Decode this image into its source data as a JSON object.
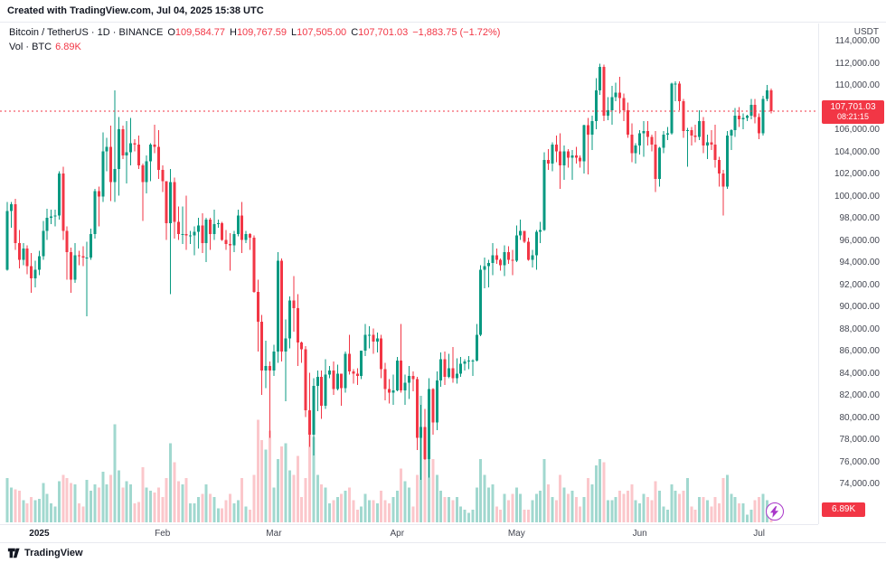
{
  "attribution": "Created with TradingView.com, Jul 04, 2025 15:38 UTC",
  "legend": {
    "title": "Bitcoin / TetherUS · 1D · BINANCE",
    "ohlc": [
      {
        "label": "O",
        "value": "109,584.77"
      },
      {
        "label": "H",
        "value": "109,767.59"
      },
      {
        "label": "L",
        "value": "107,505.00"
      },
      {
        "label": "C",
        "value": "107,701.03"
      }
    ],
    "change": "−1,883.75 (−1.72%)",
    "vol_label": "Vol · BTC",
    "vol_value": "6.89K"
  },
  "axis": {
    "currency": "USDT",
    "price_badge": {
      "price": "107,701.03",
      "countdown": "08:21:15"
    },
    "volume_badge": "6.89K"
  },
  "footer": {
    "brand": "TradingView"
  },
  "colors": {
    "up": "#089981",
    "down": "#f23645",
    "vol_up": "rgba(8,153,129,0.38)",
    "vol_down": "rgba(242,54,69,0.28)",
    "badge": "#f23645",
    "boost": "#a936c9",
    "text": "#131722",
    "muted": "#434651"
  },
  "chart_data": {
    "type": "candlestick+volume",
    "title": "Bitcoin / TetherUS · 1D · BINANCE",
    "interval": "1D",
    "start_date": "2024-12-24",
    "last_price": 107701.03,
    "last_volume_k": 6.89,
    "price_axis": {
      "min": 74000,
      "max": 114000,
      "tick_step": 2000,
      "currency": "USDT"
    },
    "y_ticks": [
      114000,
      112000,
      110000,
      108000,
      106000,
      104000,
      102000,
      100000,
      98000,
      96000,
      94000,
      92000,
      90000,
      88000,
      86000,
      84000,
      82000,
      80000,
      78000,
      76000,
      74000
    ],
    "x_ticks": [
      {
        "index": 8,
        "label": "2025",
        "bold": true
      },
      {
        "index": 39,
        "label": "Feb"
      },
      {
        "index": 67,
        "label": "Mar"
      },
      {
        "index": 98,
        "label": "Apr"
      },
      {
        "index": 128,
        "label": "May"
      },
      {
        "index": 159,
        "label": "Jun"
      },
      {
        "index": 189,
        "label": "Jul"
      }
    ],
    "candles_format": [
      "open",
      "high",
      "low",
      "close",
      "volume_k_btc"
    ],
    "candles": [
      [
        93400,
        99500,
        93300,
        98700,
        28
      ],
      [
        98700,
        99500,
        97200,
        99300,
        22
      ],
      [
        99300,
        99800,
        95200,
        95800,
        21
      ],
      [
        95800,
        97000,
        93500,
        94300,
        20
      ],
      [
        94300,
        95800,
        93800,
        95300,
        14
      ],
      [
        95300,
        95600,
        93000,
        93700,
        12
      ],
      [
        93700,
        94900,
        91300,
        92600,
        16
      ],
      [
        92600,
        94200,
        91800,
        93400,
        14
      ],
      [
        93400,
        95100,
        92900,
        94600,
        15
      ],
      [
        94600,
        97800,
        94300,
        96900,
        25
      ],
      [
        96900,
        98900,
        96100,
        98100,
        18
      ],
      [
        98100,
        98800,
        97500,
        98200,
        12
      ],
      [
        98200,
        98800,
        97300,
        98300,
        10
      ],
      [
        98300,
        102300,
        97900,
        102100,
        26
      ],
      [
        102100,
        102700,
        96100,
        96900,
        30
      ],
      [
        96900,
        97300,
        92500,
        95000,
        28
      ],
      [
        95000,
        95400,
        91300,
        92500,
        25
      ],
      [
        92500,
        95800,
        92200,
        94700,
        24
      ],
      [
        94700,
        95100,
        93800,
        94600,
        12
      ],
      [
        94600,
        95500,
        93700,
        94500,
        10
      ],
      [
        94500,
        95900,
        89200,
        94500,
        27
      ],
      [
        94500,
        97100,
        94300,
        96600,
        20
      ],
      [
        96600,
        100700,
        96200,
        100500,
        24
      ],
      [
        100500,
        100900,
        97300,
        100000,
        22
      ],
      [
        100000,
        105800,
        99500,
        104100,
        32
      ],
      [
        104100,
        105300,
        102300,
        104500,
        24
      ],
      [
        104500,
        106400,
        99600,
        101300,
        30
      ],
      [
        101300,
        109600,
        99500,
        102500,
        62
      ],
      [
        102500,
        107200,
        100100,
        106100,
        33
      ],
      [
        106100,
        106400,
        103400,
        103700,
        22
      ],
      [
        103700,
        106800,
        101200,
        104000,
        26
      ],
      [
        104000,
        107100,
        102800,
        104800,
        24
      ],
      [
        104800,
        105200,
        104100,
        104700,
        12
      ],
      [
        104700,
        105500,
        102500,
        102800,
        13
      ],
      [
        102800,
        103000,
        97800,
        101300,
        35
      ],
      [
        101300,
        103700,
        100300,
        103200,
        22
      ],
      [
        103200,
        104800,
        101400,
        104700,
        20
      ],
      [
        104700,
        106500,
        103900,
        104500,
        19
      ],
      [
        104500,
        106000,
        101600,
        102400,
        22
      ],
      [
        102400,
        102800,
        100400,
        101400,
        16
      ],
      [
        101400,
        101400,
        96100,
        97600,
        28
      ],
      [
        97600,
        102500,
        91200,
        101300,
        50
      ],
      [
        101300,
        101700,
        96200,
        97700,
        38
      ],
      [
        97700,
        99100,
        96100,
        96600,
        26
      ],
      [
        96600,
        99100,
        95700,
        96600,
        24
      ],
      [
        96600,
        100100,
        95200,
        96500,
        28
      ],
      [
        96500,
        96900,
        95700,
        96500,
        12
      ],
      [
        96500,
        97300,
        94700,
        96800,
        12
      ],
      [
        96800,
        98100,
        95300,
        97400,
        16
      ],
      [
        97400,
        98500,
        94900,
        95800,
        18
      ],
      [
        95800,
        98100,
        94100,
        97900,
        24
      ],
      [
        97900,
        98100,
        95200,
        96600,
        18
      ],
      [
        96600,
        98800,
        96100,
        97500,
        16
      ],
      [
        97500,
        97900,
        97200,
        97600,
        9
      ],
      [
        97600,
        97700,
        96000,
        96100,
        9
      ],
      [
        96100,
        97000,
        95200,
        95700,
        14
      ],
      [
        95700,
        96700,
        93300,
        95600,
        18
      ],
      [
        95600,
        96900,
        95000,
        96600,
        12
      ],
      [
        96600,
        98800,
        96400,
        98300,
        14
      ],
      [
        98300,
        99500,
        94900,
        96100,
        28
      ],
      [
        96100,
        96900,
        95800,
        96600,
        10
      ],
      [
        96600,
        96700,
        95200,
        96300,
        8
      ],
      [
        96300,
        96500,
        91300,
        91400,
        30
      ],
      [
        91400,
        92500,
        86000,
        88700,
        65
      ],
      [
        88700,
        89300,
        82100,
        84300,
        52
      ],
      [
        84300,
        87000,
        82700,
        84700,
        46
      ],
      [
        84700,
        85100,
        78200,
        84300,
        58
      ],
      [
        84300,
        86600,
        83800,
        86000,
        22
      ],
      [
        86000,
        95000,
        85000,
        94200,
        40
      ],
      [
        94200,
        94400,
        85100,
        86000,
        48
      ],
      [
        86000,
        88900,
        81500,
        87200,
        50
      ],
      [
        87200,
        91000,
        86300,
        90600,
        33
      ],
      [
        90600,
        92800,
        87800,
        89900,
        30
      ],
      [
        89900,
        91200,
        84700,
        86800,
        42
      ],
      [
        86800,
        86900,
        85000,
        86200,
        16
      ],
      [
        86200,
        86500,
        80100,
        80700,
        28
      ],
      [
        80700,
        84100,
        77400,
        78500,
        56
      ],
      [
        78500,
        83600,
        76600,
        82900,
        54
      ],
      [
        82900,
        84300,
        80600,
        83700,
        30
      ],
      [
        83700,
        84300,
        79900,
        81100,
        24
      ],
      [
        81100,
        85300,
        80800,
        83900,
        22
      ],
      [
        83900,
        84700,
        83600,
        84300,
        12
      ],
      [
        84300,
        85100,
        82100,
        82600,
        14
      ],
      [
        82600,
        84800,
        82500,
        84000,
        16
      ],
      [
        84000,
        84000,
        81100,
        82700,
        18
      ],
      [
        82700,
        86000,
        82300,
        85800,
        20
      ],
      [
        85800,
        87500,
        83900,
        84200,
        22
      ],
      [
        84200,
        84400,
        83100,
        84000,
        14
      ],
      [
        84000,
        84500,
        83000,
        83800,
        8
      ],
      [
        83800,
        86100,
        83500,
        86100,
        10
      ],
      [
        86100,
        88500,
        85600,
        87500,
        18
      ],
      [
        87500,
        88300,
        86300,
        87500,
        14
      ],
      [
        87500,
        88100,
        85800,
        86900,
        14
      ],
      [
        86900,
        87700,
        85900,
        87200,
        12
      ],
      [
        87200,
        87500,
        83600,
        84400,
        20
      ],
      [
        84400,
        85000,
        81600,
        82600,
        14
      ],
      [
        82600,
        83500,
        81300,
        82300,
        12
      ],
      [
        82300,
        83900,
        81200,
        82500,
        16
      ],
      [
        82500,
        85500,
        82400,
        85200,
        20
      ],
      [
        85200,
        88500,
        82300,
        82500,
        34
      ],
      [
        82500,
        83900,
        81200,
        83200,
        26
      ],
      [
        83200,
        84700,
        81700,
        83800,
        22
      ],
      [
        83800,
        84200,
        82400,
        83500,
        10
      ],
      [
        83500,
        83700,
        77100,
        78200,
        30
      ],
      [
        78200,
        81200,
        74400,
        79200,
        80
      ],
      [
        79200,
        80800,
        76200,
        76300,
        44
      ],
      [
        76300,
        83600,
        74600,
        82600,
        76
      ],
      [
        82600,
        82700,
        78500,
        79600,
        40
      ],
      [
        79600,
        84200,
        78900,
        83400,
        30
      ],
      [
        83400,
        85900,
        82800,
        85300,
        20
      ],
      [
        85300,
        86000,
        83000,
        83700,
        16
      ],
      [
        83700,
        85800,
        83600,
        84500,
        16
      ],
      [
        84500,
        86400,
        83200,
        83600,
        14
      ],
      [
        83600,
        85400,
        83100,
        84000,
        16
      ],
      [
        84000,
        85500,
        83700,
        84900,
        10
      ],
      [
        84900,
        85300,
        84300,
        85100,
        8
      ],
      [
        85100,
        85600,
        84400,
        85200,
        6
      ],
      [
        85200,
        85300,
        83800,
        85200,
        8
      ],
      [
        85200,
        88500,
        85100,
        87500,
        22
      ],
      [
        87500,
        93800,
        87400,
        93400,
        40
      ],
      [
        93400,
        94500,
        91700,
        93700,
        30
      ],
      [
        93700,
        94300,
        91800,
        94000,
        22
      ],
      [
        94000,
        95800,
        92900,
        94700,
        24
      ],
      [
        94700,
        95300,
        93900,
        94300,
        10
      ],
      [
        94300,
        94400,
        93300,
        93800,
        8
      ],
      [
        93800,
        95600,
        92800,
        95000,
        18
      ],
      [
        95000,
        95500,
        93900,
        94300,
        14
      ],
      [
        94300,
        95200,
        92900,
        94200,
        18
      ],
      [
        94200,
        97400,
        94100,
        96500,
        22
      ],
      [
        96500,
        97900,
        96100,
        96900,
        18
      ],
      [
        96900,
        96900,
        95800,
        95900,
        8
      ],
      [
        95900,
        96300,
        94200,
        94300,
        8
      ],
      [
        94300,
        95200,
        93600,
        94700,
        14
      ],
      [
        94700,
        97000,
        93400,
        96800,
        18
      ],
      [
        96800,
        97700,
        95800,
        97000,
        20
      ],
      [
        97000,
        104000,
        96900,
        103300,
        40
      ],
      [
        103300,
        104300,
        102400,
        103000,
        24
      ],
      [
        103000,
        104900,
        102300,
        104700,
        16
      ],
      [
        104700,
        105500,
        103100,
        104100,
        14
      ],
      [
        104100,
        105700,
        100700,
        102800,
        30
      ],
      [
        102800,
        104600,
        101500,
        104100,
        22
      ],
      [
        104100,
        104300,
        102600,
        103500,
        18
      ],
      [
        103500,
        104200,
        101500,
        103700,
        20
      ],
      [
        103700,
        104500,
        103000,
        103500,
        16
      ],
      [
        103500,
        103700,
        102600,
        103200,
        10
      ],
      [
        103200,
        106500,
        102100,
        106450,
        16
      ],
      [
        106450,
        107100,
        102000,
        105600,
        28
      ],
      [
        105600,
        107300,
        104200,
        106800,
        24
      ],
      [
        106800,
        110700,
        106100,
        109600,
        36
      ],
      [
        109600,
        112000,
        109200,
        111700,
        40
      ],
      [
        111700,
        111900,
        106800,
        107300,
        38
      ],
      [
        107300,
        109000,
        106900,
        107800,
        14
      ],
      [
        107800,
        110000,
        106500,
        109000,
        14
      ],
      [
        109000,
        110300,
        108600,
        109400,
        16
      ],
      [
        109400,
        110800,
        107500,
        108900,
        20
      ],
      [
        108900,
        109300,
        106800,
        107800,
        18
      ],
      [
        107800,
        108500,
        105300,
        105600,
        20
      ],
      [
        105600,
        106600,
        103100,
        103900,
        24
      ],
      [
        103900,
        104800,
        103000,
        104600,
        14
      ],
      [
        104600,
        106000,
        103800,
        105700,
        12
      ],
      [
        105700,
        106800,
        103600,
        105900,
        18
      ],
      [
        105900,
        106800,
        104600,
        105400,
        16
      ],
      [
        105400,
        105600,
        104100,
        104700,
        14
      ],
      [
        104700,
        105900,
        100400,
        101600,
        26
      ],
      [
        101600,
        104500,
        100900,
        104400,
        20
      ],
      [
        104400,
        105900,
        103900,
        105600,
        10
      ],
      [
        105600,
        106300,
        105100,
        105700,
        8
      ],
      [
        105700,
        110300,
        105600,
        110200,
        24
      ],
      [
        110200,
        110400,
        108600,
        110200,
        20
      ],
      [
        110200,
        110400,
        107800,
        108600,
        18
      ],
      [
        108600,
        108800,
        105300,
        105900,
        20
      ],
      [
        105900,
        106200,
        102700,
        106000,
        28
      ],
      [
        106000,
        106300,
        104600,
        105500,
        10
      ],
      [
        105500,
        106500,
        104900,
        105400,
        8
      ],
      [
        105400,
        107800,
        105100,
        106800,
        16
      ],
      [
        106800,
        107200,
        103900,
        104600,
        16
      ],
      [
        104600,
        105600,
        103400,
        104900,
        14
      ],
      [
        104900,
        106000,
        104200,
        104700,
        10
      ],
      [
        104700,
        106500,
        102600,
        103300,
        16
      ],
      [
        103300,
        103600,
        100900,
        102100,
        12
      ],
      [
        102100,
        102400,
        98300,
        100900,
        28
      ],
      [
        100900,
        105900,
        100700,
        105500,
        30
      ],
      [
        105500,
        106100,
        104200,
        106000,
        18
      ],
      [
        106000,
        108000,
        105400,
        107300,
        16
      ],
      [
        107300,
        108100,
        106300,
        107000,
        12
      ],
      [
        107000,
        107500,
        106100,
        107100,
        12
      ],
      [
        107100,
        107400,
        106800,
        107300,
        5
      ],
      [
        107300,
        108800,
        107000,
        108300,
        8
      ],
      [
        108300,
        108800,
        106600,
        107200,
        14
      ],
      [
        107200,
        107500,
        105200,
        105700,
        16
      ],
      [
        105700,
        109100,
        105500,
        108800,
        18
      ],
      [
        108800,
        110100,
        108600,
        109600,
        14
      ],
      [
        109584.77,
        109767.59,
        107505,
        107701.03,
        6.89
      ]
    ]
  }
}
